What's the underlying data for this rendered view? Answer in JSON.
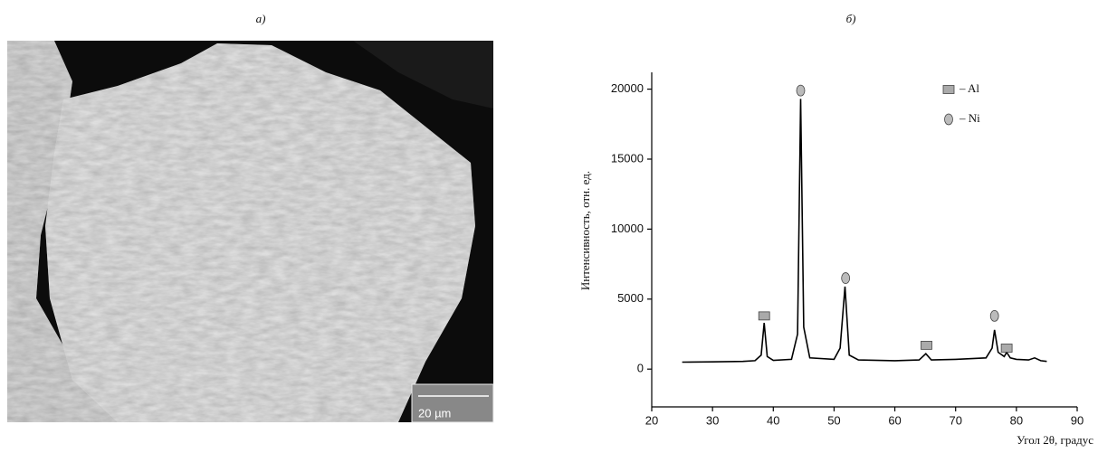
{
  "figure": {
    "label_a": "а)",
    "label_b": "б)",
    "scale_bar": "20 µm"
  },
  "chart_data": {
    "type": "line",
    "x": [
      25,
      30,
      35,
      37,
      38,
      38.5,
      39,
      40,
      43,
      44,
      44.5,
      45,
      46,
      50,
      51,
      51.8,
      52.5,
      54,
      60,
      64,
      65.1,
      66,
      70,
      75,
      76,
      76.4,
      77,
      78,
      78.4,
      79,
      80,
      82,
      83,
      84,
      85
    ],
    "values": [
      500,
      520,
      550,
      600,
      1000,
      3300,
      900,
      620,
      700,
      2500,
      19300,
      3000,
      800,
      700,
      1500,
      5900,
      1000,
      650,
      600,
      650,
      1100,
      650,
      700,
      800,
      1500,
      2800,
      1200,
      900,
      1200,
      800,
      700,
      650,
      800,
      600,
      550
    ],
    "color": "#000000",
    "xlim": [
      20,
      90
    ],
    "xticks": [
      20,
      30,
      40,
      50,
      60,
      70,
      80,
      90
    ],
    "ylim": [
      -2700,
      21200
    ],
    "yticks": [
      0,
      5000,
      10000,
      15000,
      20000
    ],
    "x_label": "Угол 2θ, градус",
    "y_label": "Интенсивность, отн. ед.",
    "markers": [
      {
        "name": "– Al",
        "shape": "square",
        "color": "#aaaaaa",
        "x": [
          38.5,
          65.2,
          78.4
        ],
        "values": [
          3800,
          1700,
          1500
        ]
      },
      {
        "name": "– Ni",
        "shape": "ellipse",
        "color": "#bbbbbb",
        "x": [
          44.5,
          51.9,
          76.4
        ],
        "values": [
          19900,
          6500,
          3800
        ]
      }
    ]
  }
}
